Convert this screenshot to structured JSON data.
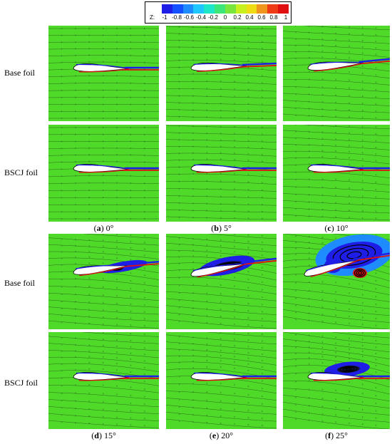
{
  "legend": {
    "label": "Z:",
    "ticks": [
      "-1",
      "-0.8",
      "-0.6",
      "-0.4",
      "-0.2",
      "0",
      "0.2",
      "0.4",
      "0.6",
      "0.8",
      "1"
    ],
    "colors": [
      "#1e1ee6",
      "#1450ff",
      "#1e8cff",
      "#1ec8ff",
      "#1ee6c8",
      "#3ce678",
      "#78e63c",
      "#c8f01e",
      "#f0dc14",
      "#f0961e",
      "#f03c14",
      "#e01010"
    ]
  },
  "row_labels": {
    "base": "Base foil",
    "bscj": "BSCJ foil"
  },
  "captions": [
    {
      "letter": "a",
      "angle": "0°"
    },
    {
      "letter": "b",
      "angle": "5°"
    },
    {
      "letter": "c",
      "angle": "10°"
    },
    {
      "letter": "d",
      "angle": "15°"
    },
    {
      "letter": "e",
      "angle": "20°"
    },
    {
      "letter": "f",
      "angle": "25°"
    }
  ],
  "colors": {
    "field": "#4fd928",
    "streamline": "#1a3a1a",
    "vortex_core": "#000000",
    "negative": "#1e1ee6",
    "positive": "#e01010"
  }
}
